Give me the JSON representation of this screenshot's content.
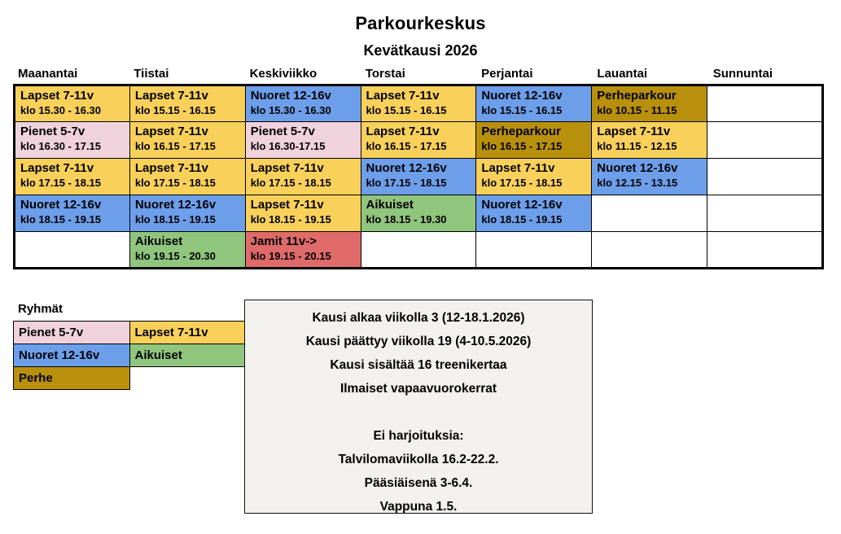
{
  "title": "Parkourkeskus",
  "subtitle": "Kevätkausi 2026",
  "colors": {
    "yellow": "#F8D05A",
    "pink": "#EFD2DB",
    "blue": "#6D9EEA",
    "green": "#90C57D",
    "gold": "#B8900C",
    "red": "#DF6A6A",
    "info_bg": "#F2F1EF",
    "grid_border": "#000000"
  },
  "schedule": {
    "days": [
      "Maanantai",
      "Tiistai",
      "Keskiviikko",
      "Torstai",
      "Perjantai",
      "Lauantai",
      "Sunnuntai"
    ],
    "rows": [
      [
        {
          "group": "Lapset 7-11v",
          "time": "klo 15.30 - 16.30",
          "color": "yellow"
        },
        {
          "group": "Lapset 7-11v",
          "time": "klo 15.15 - 16.15",
          "color": "yellow"
        },
        {
          "group": "Nuoret 12-16v",
          "time": "klo 15.30 - 16.30",
          "color": "blue"
        },
        {
          "group": "Lapset 7-11v",
          "time": "klo 15.15 - 16.15",
          "color": "yellow"
        },
        {
          "group": "Nuoret 12-16v",
          "time": "klo 15.15 - 16.15",
          "color": "blue"
        },
        {
          "group": "Perheparkour",
          "time": "klo 10.15 - 11.15",
          "color": "gold"
        },
        null
      ],
      [
        {
          "group": "Pienet 5-7v",
          "time": "klo 16.30 - 17.15",
          "color": "pink"
        },
        {
          "group": "Lapset 7-11v",
          "time": "klo 16.15 - 17.15",
          "color": "yellow"
        },
        {
          "group": "Pienet 5-7v",
          "time": "klo 16.30-17.15",
          "color": "pink"
        },
        {
          "group": "Lapset 7-11v",
          "time": "klo 16.15 - 17.15",
          "color": "yellow"
        },
        {
          "group": "Perheparkour",
          "time": "klo 16.15 - 17.15",
          "color": "gold"
        },
        {
          "group": "Lapset 7-11v",
          "time": "klo 11.15 - 12.15",
          "color": "yellow"
        },
        null
      ],
      [
        {
          "group": "Lapset 7-11v",
          "time": "klo 17.15 - 18.15",
          "color": "yellow"
        },
        {
          "group": "Lapset 7-11v",
          "time": "klo 17.15 - 18.15",
          "color": "yellow"
        },
        {
          "group": "Lapset 7-11v",
          "time": "klo 17.15 - 18.15",
          "color": "yellow"
        },
        {
          "group": "Nuoret 12-16v",
          "time": "klo 17.15 - 18.15",
          "color": "blue"
        },
        {
          "group": "Lapset 7-11v",
          "time": "klo 17.15 - 18.15",
          "color": "yellow"
        },
        {
          "group": "Nuoret 12-16v",
          "time": "klo 12.15 - 13.15",
          "color": "blue"
        },
        null
      ],
      [
        {
          "group": "Nuoret 12-16v",
          "time": "klo 18.15 - 19.15",
          "color": "blue"
        },
        {
          "group": "Nuoret 12-16v",
          "time": "klo 18.15 - 19.15",
          "color": "blue"
        },
        {
          "group": "Lapset 7-11v",
          "time": "klo 18.15 - 19.15",
          "color": "yellow"
        },
        {
          "group": "Aikuiset",
          "time": "klo 18.15 - 19.30",
          "color": "green"
        },
        {
          "group": "Nuoret 12-16v",
          "time": "klo 18.15 - 19.15",
          "color": "blue"
        },
        null,
        null
      ],
      [
        null,
        {
          "group": "Aikuiset",
          "time": "klo 19.15 - 20.30",
          "color": "green"
        },
        {
          "group": "Jamit 11v->",
          "time": "klo 19.15 - 20.15",
          "color": "red"
        },
        null,
        null,
        null,
        null
      ]
    ]
  },
  "legend": {
    "title": "Ryhmät",
    "rows": [
      [
        {
          "label": "Pienet 5-7v",
          "color": "pink"
        },
        {
          "label": "Lapset 7-11v",
          "color": "yellow"
        }
      ],
      [
        {
          "label": "Nuoret 12-16v",
          "color": "blue"
        },
        {
          "label": "Aikuiset",
          "color": "green"
        }
      ],
      [
        {
          "label": "Perhe",
          "color": "gold"
        },
        null
      ]
    ]
  },
  "info_box": {
    "lines": [
      "Kausi alkaa viikolla 3 (12-18.1.2026)",
      "Kausi päättyy viikolla 19 (4-10.5.2026)",
      "Kausi sisältää 16 treenikertaa",
      "Ilmaiset vapaavuorokerrat",
      "",
      "Ei harjoituksia:",
      "Talvilomaviikolla 16.2-22.2.",
      "Pääsiäisenä 3-6.4.",
      "Vappuna 1.5."
    ]
  }
}
